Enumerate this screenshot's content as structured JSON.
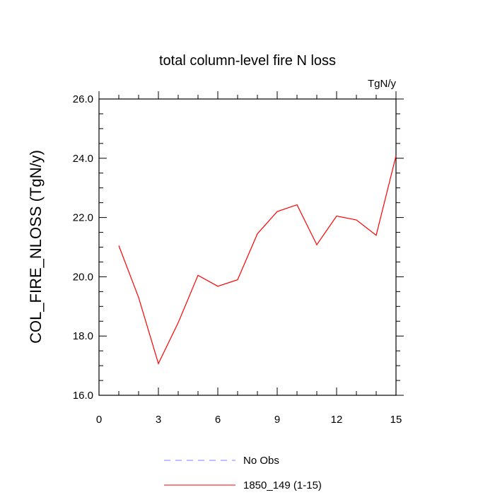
{
  "chart_data": {
    "type": "line",
    "title": "total column-level fire N loss",
    "units": "TgN/y",
    "xlabel": "",
    "ylabel": "COL_FIRE_NLOSS  (TgN/y)",
    "xlim": [
      0,
      15
    ],
    "ylim": [
      16.0,
      26.0
    ],
    "xticks": [
      0,
      3,
      6,
      9,
      12,
      15
    ],
    "xtick_labels": [
      "0",
      "3",
      "6",
      "9",
      "12",
      "15"
    ],
    "yticks": [
      16.0,
      18.0,
      20.0,
      22.0,
      24.0,
      26.0
    ],
    "ytick_labels": [
      "16.0",
      "18.0",
      "20.0",
      "22.0",
      "24.0",
      "26.0"
    ],
    "grid": false,
    "legend_position": "bottom",
    "series": [
      {
        "name": "1850_149 (1-15)",
        "color": "#ff0000",
        "style": "solid",
        "x": [
          1,
          2,
          3,
          4,
          5,
          6,
          7,
          8,
          9,
          10,
          11,
          12,
          13,
          14,
          15
        ],
        "y": [
          21.05,
          19.3,
          17.07,
          18.45,
          20.05,
          19.68,
          19.9,
          21.45,
          22.2,
          22.43,
          21.08,
          22.05,
          21.92,
          21.4,
          24.08
        ]
      }
    ],
    "legend": [
      {
        "label": "No Obs",
        "color": "#8080ff",
        "style": "dashed"
      },
      {
        "label": "1850_149 (1-15)",
        "color": "#ff0000",
        "style": "solid"
      }
    ]
  }
}
